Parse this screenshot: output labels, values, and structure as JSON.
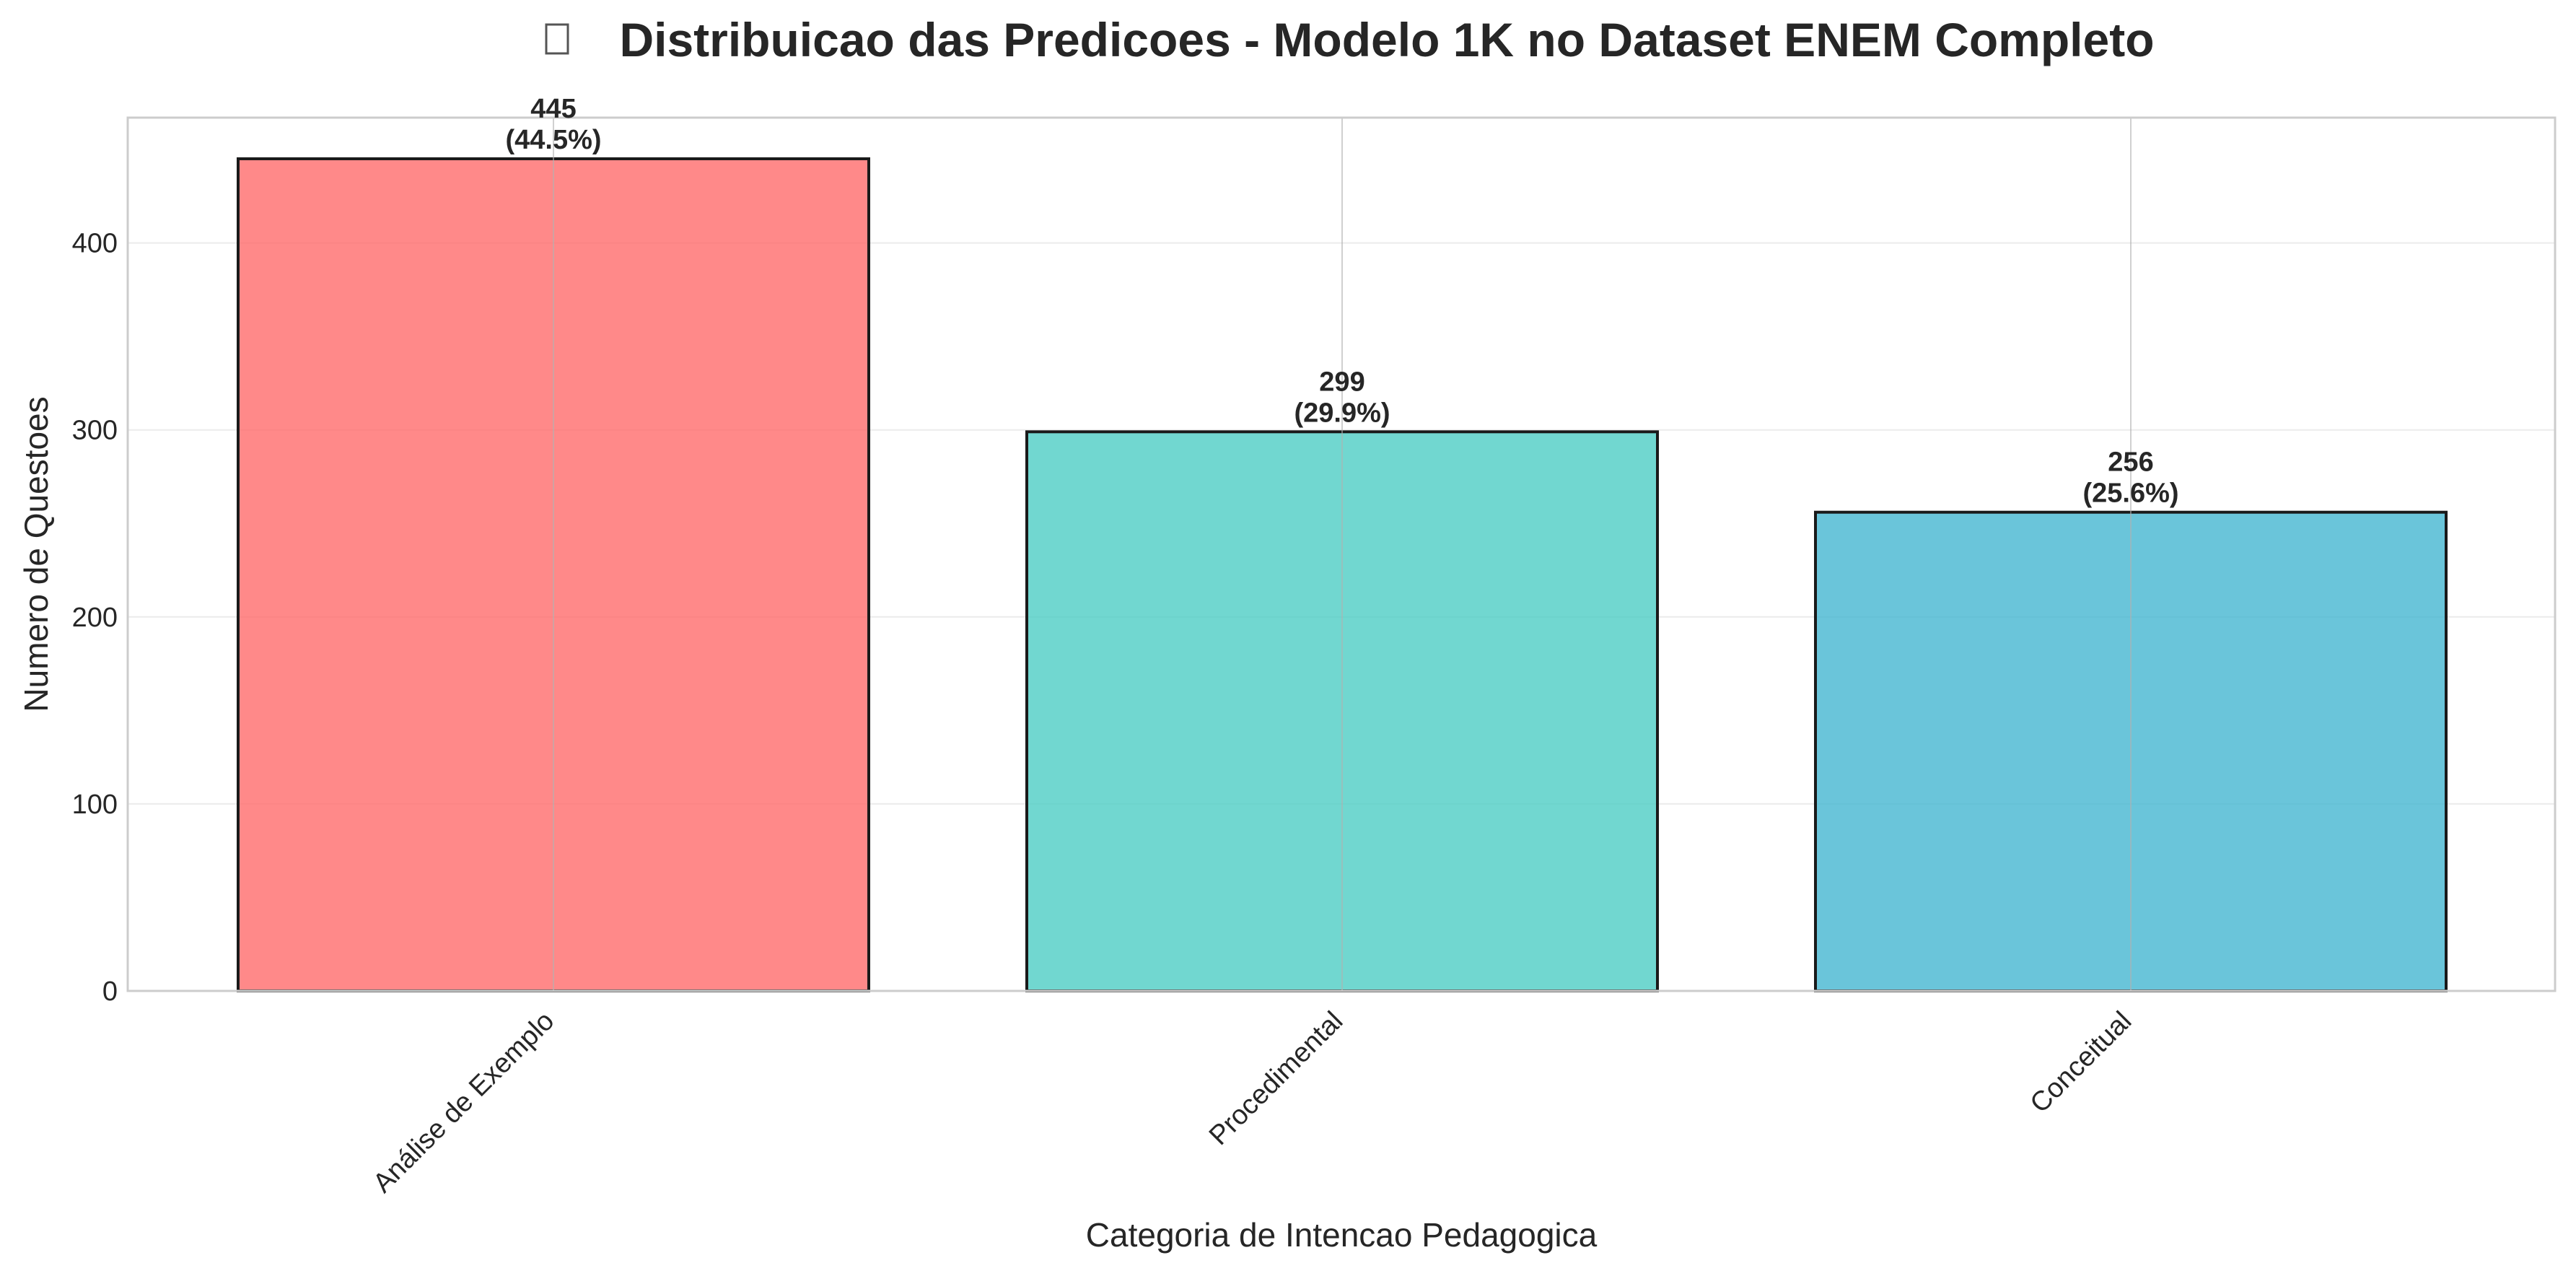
{
  "chart_data": {
    "type": "bar",
    "title": "Distribuicao das Predicoes - Modelo 1K no Dataset ENEM Completo",
    "title_icon": "missing-glyph-icon",
    "xlabel": "Categoria de Intencao Pedagogica",
    "ylabel": "Numero de Questoes",
    "categories": [
      "Análise de Exemplo",
      "Procedimental",
      "Conceitual"
    ],
    "values": [
      445,
      299,
      256
    ],
    "value_labels": [
      "445",
      "299",
      "256"
    ],
    "percent_labels": [
      "(44.5%)",
      "(29.9%)",
      "(25.6%)"
    ],
    "colors": [
      "#ff6b6b",
      "#4ecdc4",
      "#45b7d1"
    ],
    "ylim": [
      0,
      467
    ],
    "yticks": [
      0,
      100,
      200,
      300,
      400
    ],
    "grid": true,
    "legend": "none"
  }
}
